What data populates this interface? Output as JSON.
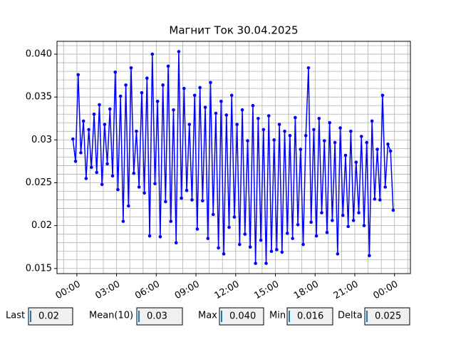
{
  "chart_data": {
    "type": "line",
    "title": "Магнит Ток 30.04.2025",
    "x": [
      -0.3,
      -0.1,
      0.1,
      0.3,
      0.5,
      0.7,
      0.9,
      1.1,
      1.3,
      1.5,
      1.7,
      1.9,
      2.1,
      2.3,
      2.5,
      2.7,
      2.9,
      3.1,
      3.3,
      3.5,
      3.7,
      3.9,
      4.1,
      4.3,
      4.5,
      4.7,
      4.9,
      5.1,
      5.3,
      5.5,
      5.7,
      5.9,
      6.1,
      6.3,
      6.5,
      6.7,
      6.9,
      7.1,
      7.3,
      7.5,
      7.7,
      7.9,
      8.1,
      8.3,
      8.5,
      8.7,
      8.9,
      9.1,
      9.3,
      9.5,
      9.7,
      9.9,
      10.1,
      10.3,
      10.5,
      10.7,
      10.9,
      11.1,
      11.3,
      11.5,
      11.7,
      11.9,
      12.1,
      12.3,
      12.5,
      12.7,
      12.9,
      13.1,
      13.3,
      13.5,
      13.7,
      13.9,
      14.1,
      14.3,
      14.5,
      14.7,
      14.9,
      15.1,
      15.3,
      15.5,
      15.7,
      15.9,
      16.1,
      16.3,
      16.5,
      16.7,
      16.9,
      17.1,
      17.3,
      17.5,
      17.7,
      17.9,
      18.1,
      18.3,
      18.5,
      18.7,
      18.9,
      19.1,
      19.3,
      19.5,
      19.7,
      19.9,
      20.1,
      20.3,
      20.5,
      20.7,
      20.9,
      21.1,
      21.3,
      21.5,
      21.7,
      21.9,
      22.1,
      22.3,
      22.5,
      22.7,
      22.9,
      23.1,
      23.3,
      23.5,
      23.7,
      23.9
    ],
    "series": [
      {
        "color": "#0000ff",
        "values": [
          0.0301,
          0.0275,
          0.0376,
          0.0285,
          0.0322,
          0.0255,
          0.0312,
          0.0268,
          0.033,
          0.0262,
          0.0341,
          0.0248,
          0.0318,
          0.0272,
          0.0336,
          0.0258,
          0.0379,
          0.0242,
          0.0351,
          0.0205,
          0.0364,
          0.0223,
          0.0384,
          0.0261,
          0.031,
          0.0245,
          0.0355,
          0.0238,
          0.0372,
          0.0188,
          0.04,
          0.0249,
          0.0345,
          0.0187,
          0.0364,
          0.0228,
          0.0386,
          0.0205,
          0.0335,
          0.018,
          0.0403,
          0.0232,
          0.036,
          0.0241,
          0.0318,
          0.023,
          0.0352,
          0.0196,
          0.0361,
          0.0229,
          0.0338,
          0.0185,
          0.0367,
          0.0213,
          0.0331,
          0.0174,
          0.0345,
          0.0167,
          0.0329,
          0.0198,
          0.0352,
          0.021,
          0.0318,
          0.0178,
          0.0335,
          0.019,
          0.0299,
          0.0175,
          0.034,
          0.0156,
          0.0325,
          0.0183,
          0.0312,
          0.0156,
          0.0328,
          0.017,
          0.03,
          0.0172,
          0.0318,
          0.0169,
          0.031,
          0.0191,
          0.0305,
          0.0185,
          0.0326,
          0.0201,
          0.0289,
          0.0178,
          0.0305,
          0.0384,
          0.0204,
          0.0312,
          0.0188,
          0.0325,
          0.0215,
          0.0299,
          0.0192,
          0.032,
          0.0206,
          0.0297,
          0.0167,
          0.0314,
          0.0212,
          0.0282,
          0.0199,
          0.031,
          0.0206,
          0.0274,
          0.0215,
          0.0304,
          0.02,
          0.0297,
          0.0165,
          0.0322,
          0.0231,
          0.0289,
          0.023,
          0.0352,
          0.0245,
          0.0295,
          0.0287,
          0.0218
        ]
      }
    ],
    "xlim": [
      -1.5,
      25.2
    ],
    "ylim": [
      0.0144,
      0.0415
    ],
    "xticks": [
      {
        "value": 0,
        "label": "00:00"
      },
      {
        "value": 3,
        "label": "03:00"
      },
      {
        "value": 6,
        "label": "06:00"
      },
      {
        "value": 9,
        "label": "09:00"
      },
      {
        "value": 12,
        "label": "12:00"
      },
      {
        "value": 15,
        "label": "15:00"
      },
      {
        "value": 18,
        "label": "18:00"
      },
      {
        "value": 21,
        "label": "21:00"
      },
      {
        "value": 24,
        "label": "00:00"
      }
    ],
    "yticks": [
      0.015,
      0.02,
      0.025,
      0.03,
      0.035,
      {
        "value": 0.04,
        "label": "0.040"
      }
    ],
    "xminorticks": [
      -1,
      0,
      1,
      2,
      3,
      4,
      5,
      6,
      7,
      8,
      9,
      10,
      11,
      12,
      13,
      14,
      15,
      16,
      17,
      18,
      19,
      20,
      21,
      22,
      23,
      24,
      25
    ],
    "yminorticks": [
      0.015,
      0.016,
      0.017,
      0.018,
      0.019,
      0.02,
      0.021,
      0.022,
      0.023,
      0.024,
      0.025,
      0.026,
      0.027,
      0.028,
      0.029,
      0.03,
      0.031,
      0.032,
      0.033,
      0.034,
      0.035,
      0.036,
      0.037,
      0.038,
      0.039,
      0.04,
      0.041
    ],
    "grid": true,
    "markers": true
  },
  "widgets": [
    {
      "label": "Last",
      "value": "0.02"
    },
    {
      "label": "Mean(10)",
      "value": "0.03"
    },
    {
      "label": "Max",
      "value": "0.040"
    },
    {
      "label": "Min",
      "value": "0.016"
    },
    {
      "label": "Delta",
      "value": "0.025"
    }
  ]
}
